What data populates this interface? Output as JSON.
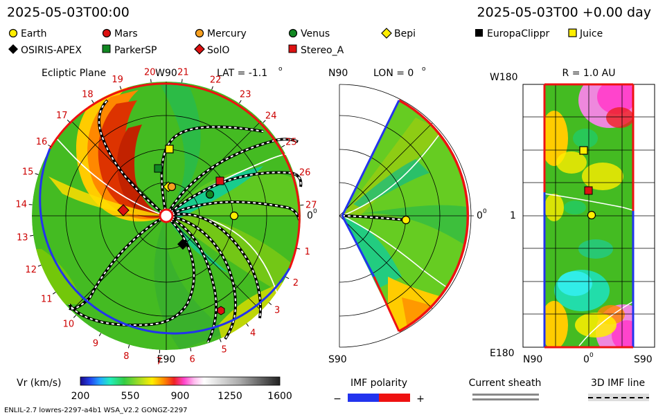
{
  "header": {
    "timestamp_left": "2025-05-03T00:00",
    "timestamp_right": "2025-05-03T00 +0.00 day"
  },
  "legend": [
    {
      "name": "Earth",
      "color": "#ffee00",
      "shape": "circle"
    },
    {
      "name": "Mars",
      "color": "#dd1111",
      "shape": "hexagon"
    },
    {
      "name": "Mercury",
      "color": "#f7a020",
      "shape": "circle"
    },
    {
      "name": "Venus",
      "color": "#118822",
      "shape": "circle"
    },
    {
      "name": "Bepi",
      "color": "#ffee00",
      "shape": "diamond"
    },
    {
      "name": "EuropaClippr",
      "color": "#000000",
      "shape": "square"
    },
    {
      "name": "Juice",
      "color": "#ffee00",
      "shape": "square"
    },
    {
      "name": "OSIRIS-APEX",
      "color": "#000000",
      "shape": "diamond"
    },
    {
      "name": "ParkerSP",
      "color": "#118822",
      "shape": "square"
    },
    {
      "name": "SolO",
      "color": "#dd1111",
      "shape": "diamond"
    },
    {
      "name": "Stereo_A",
      "color": "#dd1111",
      "shape": "square"
    }
  ],
  "panels": {
    "ecliptic": {
      "title": "Ecliptic Plane",
      "lat": "LAT = -1.1",
      "lat_sup": "o",
      "top_label": "W90",
      "bottom_label": "E90",
      "right_label": "0",
      "right_sup": "0",
      "carrington_numbers": [
        "1",
        "2",
        "3",
        "4",
        "5",
        "6",
        "7",
        "8",
        "9",
        "10",
        "11",
        "12",
        "13",
        "14",
        "15",
        "16",
        "17",
        "18",
        "19",
        "20",
        "21",
        "22",
        "23",
        "24",
        "25",
        "26",
        "27"
      ]
    },
    "meridional": {
      "lon": "LON = 0",
      "lon_sup": "o",
      "top_label": "N90",
      "bottom_label": "S90",
      "right_label": "0",
      "right_sup": "0"
    },
    "map": {
      "r_label": "R = 1.0 AU",
      "top_label": "W180",
      "mid_label": "1",
      "bottom_label": "E180",
      "x_left": "N90",
      "x_mid": "0",
      "x_mid_sup": "0",
      "x_right": "S90"
    }
  },
  "colorbar": {
    "label": "Vr (km/s)",
    "ticks": [
      "200",
      "550",
      "900",
      "1250",
      "1600"
    ]
  },
  "imf": {
    "label": "IMF polarity",
    "minus": "−",
    "plus": "+"
  },
  "sheath": {
    "label": "Current sheath"
  },
  "imf3d": {
    "label": "3D IMF line"
  },
  "footer": {
    "model_info": "ENLIL-2.7 lowres-2297-a4b1 WSA_V2.2 GONGZ-2297"
  },
  "chart_data": {
    "type": "heatmap",
    "quantity": "Vr (km/s)",
    "vrange": [
      200,
      1600
    ],
    "colorbar_ticks": [
      200,
      550,
      900,
      1250,
      1600
    ],
    "ecliptic_bodies_deg_from_earth": [
      {
        "name": "Earth",
        "angle": 0
      },
      {
        "name": "Mercury",
        "angle": 70
      },
      {
        "name": "Venus",
        "angle": 40
      },
      {
        "name": "Mars",
        "angle": -60
      },
      {
        "name": "SolO",
        "angle": 170
      },
      {
        "name": "OSIRIS-APEX",
        "angle": -75
      }
    ]
  }
}
